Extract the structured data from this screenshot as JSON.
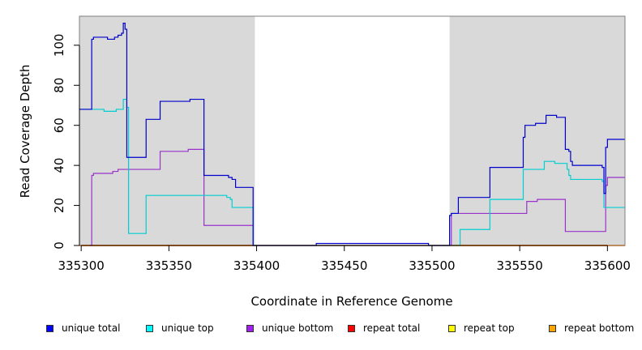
{
  "chart_data": {
    "type": "line",
    "xlabel": "Coordinate in Reference Genome",
    "ylabel": "Read Coverage Depth",
    "xlim": [
      335305,
      335610
    ],
    "ylim": [
      0,
      115
    ],
    "x_ticks": [
      335300,
      335350,
      335400,
      335450,
      335500,
      335550,
      335600
    ],
    "y_ticks": [
      0,
      20,
      40,
      60,
      80,
      100
    ],
    "shaded_regions": [
      [
        335299,
        335399
      ],
      [
        335510,
        335610
      ]
    ],
    "shade_color": "#d9d9d9",
    "series": [
      {
        "name": "unique total",
        "color": "#0000cd",
        "steps": [
          [
            335299,
            68
          ],
          [
            335305,
            68
          ],
          [
            335306,
            103
          ],
          [
            335307,
            104
          ],
          [
            335315,
            103
          ],
          [
            335319,
            104
          ],
          [
            335321,
            105
          ],
          [
            335323,
            106
          ],
          [
            335324,
            111
          ],
          [
            335325,
            108
          ],
          [
            335326,
            44
          ],
          [
            335336,
            44
          ],
          [
            335337,
            63
          ],
          [
            335344,
            63
          ],
          [
            335345,
            72
          ],
          [
            335361,
            72
          ],
          [
            335362,
            73
          ],
          [
            335369,
            73
          ],
          [
            335370,
            35
          ],
          [
            335383,
            35
          ],
          [
            335384,
            34
          ],
          [
            335386,
            33
          ],
          [
            335388,
            29
          ],
          [
            335397,
            29
          ],
          [
            335398,
            0
          ],
          [
            335433,
            0
          ],
          [
            335434,
            1
          ],
          [
            335497,
            1
          ],
          [
            335498,
            0
          ],
          [
            335509,
            0
          ],
          [
            335510,
            15
          ],
          [
            335511,
            16
          ],
          [
            335514,
            16
          ],
          [
            335515,
            24
          ],
          [
            335532,
            24
          ],
          [
            335533,
            39
          ],
          [
            335551,
            39
          ],
          [
            335552,
            54
          ],
          [
            335553,
            60
          ],
          [
            335558,
            60
          ],
          [
            335559,
            61
          ],
          [
            335564,
            61
          ],
          [
            335565,
            65
          ],
          [
            335570,
            65
          ],
          [
            335571,
            64
          ],
          [
            335575,
            64
          ],
          [
            335576,
            48
          ],
          [
            335578,
            47
          ],
          [
            335579,
            42
          ],
          [
            335580,
            40
          ],
          [
            335596,
            40
          ],
          [
            335597,
            39
          ],
          [
            335598,
            26
          ],
          [
            335599,
            49
          ],
          [
            335600,
            53
          ],
          [
            335610,
            53
          ]
        ]
      },
      {
        "name": "unique top",
        "color": "#00ced1",
        "steps": [
          [
            335299,
            68
          ],
          [
            335312,
            68
          ],
          [
            335313,
            67
          ],
          [
            335319,
            67
          ],
          [
            335320,
            68
          ],
          [
            335323,
            68
          ],
          [
            335324,
            73
          ],
          [
            335326,
            69
          ],
          [
            335327,
            6
          ],
          [
            335336,
            6
          ],
          [
            335337,
            25
          ],
          [
            335382,
            25
          ],
          [
            335383,
            24
          ],
          [
            335385,
            23
          ],
          [
            335386,
            19
          ],
          [
            335397,
            19
          ],
          [
            335398,
            0
          ],
          [
            335515,
            0
          ],
          [
            335516,
            8
          ],
          [
            335532,
            8
          ],
          [
            335533,
            23
          ],
          [
            335551,
            23
          ],
          [
            335552,
            38
          ],
          [
            335563,
            38
          ],
          [
            335564,
            42
          ],
          [
            335569,
            42
          ],
          [
            335570,
            41
          ],
          [
            335576,
            41
          ],
          [
            335577,
            38
          ],
          [
            335578,
            35
          ],
          [
            335579,
            33
          ],
          [
            335596,
            33
          ],
          [
            335597,
            32
          ],
          [
            335598,
            19
          ],
          [
            335610,
            19
          ]
        ]
      },
      {
        "name": "unique bottom",
        "color": "#9932cc",
        "steps": [
          [
            335305,
            0
          ],
          [
            335306,
            35
          ],
          [
            335307,
            36
          ],
          [
            335317,
            36
          ],
          [
            335318,
            37
          ],
          [
            335320,
            37
          ],
          [
            335321,
            38
          ],
          [
            335344,
            38
          ],
          [
            335345,
            47
          ],
          [
            335360,
            47
          ],
          [
            335361,
            48
          ],
          [
            335369,
            48
          ],
          [
            335370,
            10
          ],
          [
            335397,
            10
          ],
          [
            335398,
            0
          ],
          [
            335510,
            0
          ],
          [
            335511,
            16
          ],
          [
            335553,
            16
          ],
          [
            335554,
            22
          ],
          [
            335559,
            22
          ],
          [
            335560,
            23
          ],
          [
            335575,
            23
          ],
          [
            335576,
            7
          ],
          [
            335598,
            7
          ],
          [
            335599,
            30
          ],
          [
            335600,
            34
          ],
          [
            335610,
            34
          ]
        ]
      },
      {
        "name": "repeat total",
        "color": "#ff0000",
        "steps": [
          [
            335299,
            0
          ],
          [
            335610,
            0
          ]
        ]
      },
      {
        "name": "repeat top",
        "color": "#ffff00",
        "steps": [
          [
            335299,
            0
          ],
          [
            335610,
            0
          ]
        ]
      },
      {
        "name": "repeat bottom",
        "color": "#ff8c00",
        "steps": [
          [
            335299,
            0
          ],
          [
            335610,
            0
          ]
        ]
      }
    ]
  }
}
